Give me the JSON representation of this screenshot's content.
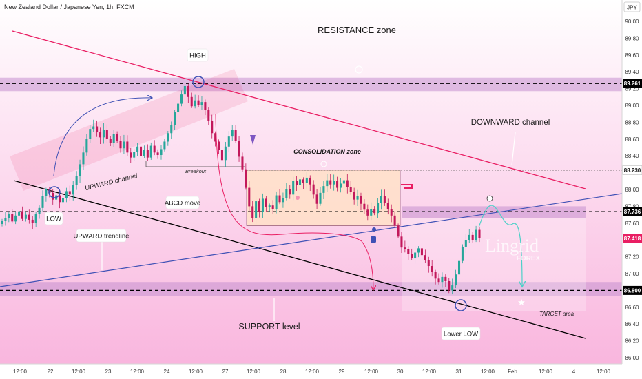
{
  "symbol": "New Zealand Dollar / Japanese Yen, 1h, FXCM",
  "currency": "JPY",
  "colors": {
    "bull": "#26a69a",
    "bear": "#c2185b",
    "downward_channel": "#e91e63",
    "upward_trendline": "#3f51b5",
    "support_line": "#000000",
    "zone_band": "#c58fcf",
    "consolidation_zone": "#ffe0c8",
    "price_tag_current": "#e91e63",
    "price_tag_level": "#000000"
  },
  "chart_data": {
    "type": "candlestick",
    "ylim": [
      85.95,
      90.2
    ],
    "y_ticks": [
      86.0,
      86.2,
      86.4,
      86.6,
      86.8,
      87.0,
      87.2,
      87.4,
      87.6,
      87.8,
      88.0,
      88.2,
      88.4,
      88.6,
      88.8,
      89.0,
      89.2,
      89.4,
      89.6,
      89.8,
      90.0
    ],
    "x_labels": [
      "12:00",
      "22",
      "12:00",
      "23",
      "12:00",
      "24",
      "12:00",
      "27",
      "12:00",
      "28",
      "12:00",
      "29",
      "12:00",
      "30",
      "12:00",
      "31",
      "12:00",
      "Feb",
      "12:00",
      "4",
      "12:00"
    ],
    "price_labels": [
      {
        "value": "89.261",
        "style": "level"
      },
      {
        "value": "88.230",
        "style": "plain"
      },
      {
        "value": "87.736",
        "style": "level"
      },
      {
        "value": "87.418",
        "style": "current"
      },
      {
        "value": "86.800",
        "style": "level"
      }
    ],
    "key_levels": [
      89.261,
      88.23,
      87.736,
      86.8
    ],
    "resistance_band": [
      89.17,
      89.33
    ],
    "support_band": [
      86.73,
      86.9
    ],
    "mid_band": [
      87.66,
      87.8
    ],
    "close_series": [
      87.63,
      87.66,
      87.71,
      87.62,
      87.69,
      87.74,
      87.65,
      87.7,
      87.64,
      87.6,
      87.71,
      87.78,
      87.92,
      88.0,
      87.96,
      87.88,
      87.93,
      87.85,
      87.9,
      87.98,
      87.94,
      88.05,
      88.16,
      88.3,
      88.44,
      88.6,
      88.72,
      88.75,
      88.68,
      88.62,
      88.71,
      88.6,
      88.55,
      88.66,
      88.58,
      88.49,
      88.57,
      88.44,
      88.38,
      88.45,
      88.51,
      88.4,
      88.47,
      88.38,
      88.52,
      88.44,
      88.41,
      88.48,
      88.57,
      88.67,
      88.77,
      88.92,
      89.02,
      89.13,
      89.23,
      89.1,
      88.99,
      89.06,
      89.0,
      89.04,
      88.95,
      88.82,
      88.67,
      88.57,
      88.47,
      88.35,
      88.51,
      88.63,
      88.71,
      88.58,
      88.39,
      88.24,
      88.02,
      87.8,
      87.66,
      87.86,
      87.73,
      87.89,
      87.79,
      87.81,
      87.77,
      87.93,
      87.85,
      87.9,
      88.0,
      87.94,
      88.1,
      88.05,
      88.12,
      88.08,
      88.14,
      88.06,
      87.94,
      87.83,
      87.96,
      88.04,
      88.11,
      88.06,
      88.1,
      88.02,
      88.07,
      88.11,
      88.03,
      87.97,
      87.88,
      87.92,
      87.83,
      87.76,
      87.69,
      87.77,
      87.72,
      87.84,
      87.92,
      87.84,
      87.77,
      87.69,
      87.57,
      87.44,
      87.31,
      87.29,
      87.23,
      87.18,
      87.25,
      87.3,
      87.22,
      87.16,
      87.09,
      87.02,
      86.94,
      86.9,
      86.96,
      86.91,
      86.8,
      86.86,
      86.99,
      87.15,
      87.32,
      87.4,
      87.46,
      87.4,
      87.52,
      87.42
    ],
    "horizontal_scale": "hourly candles, Jan 21 12:00 to Jan 31 ~05:00"
  },
  "annotations": {
    "resistance_zone": "RESISTANCE zone",
    "high": "HIGH",
    "low": "LOW",
    "downward_channel": "DOWNWARD channel",
    "upward_channel": "UPWARD channel",
    "consolidation_zone": "CONSOLIDATION zone",
    "breakout": "Breakout",
    "abcd_move": "ABCD move",
    "upward_trendline": "UPWARD trendline",
    "support_level": "SUPPORT level",
    "lower_low": "Lower LOW",
    "target_area": "TARGET area"
  },
  "watermark": {
    "brand": "Lingrid",
    "sub": "FOREX"
  }
}
